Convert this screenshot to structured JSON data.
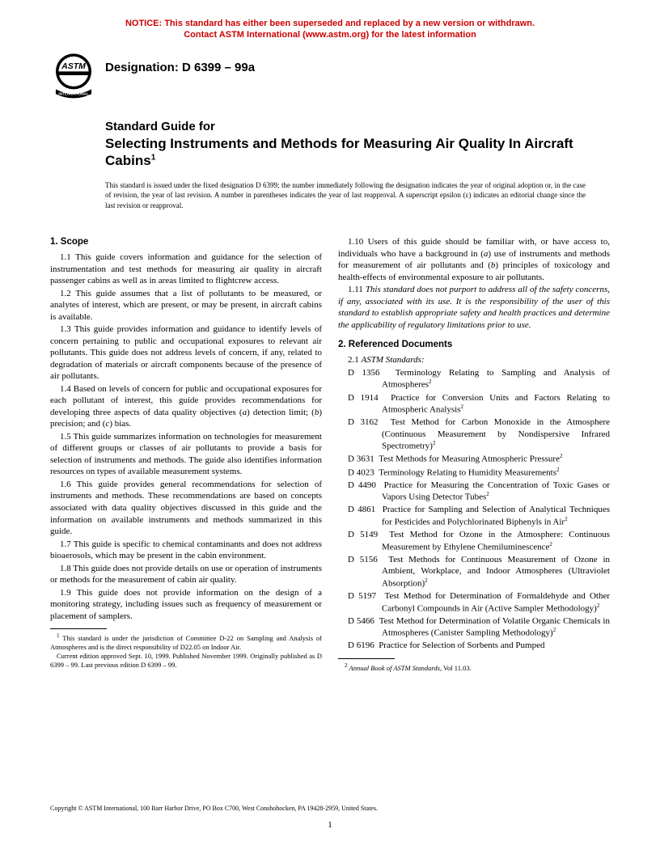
{
  "notice": {
    "line1": "NOTICE: This standard has either been superseded and replaced by a new version or withdrawn.",
    "line2": "Contact ASTM International (www.astm.org) for the latest information",
    "color": "#cc0000"
  },
  "logo": {
    "label": "ASTM INTERNATIONAL"
  },
  "designation": "Designation: D 6399 – 99a",
  "title": {
    "lead": "Standard Guide for",
    "main": "Selecting Instruments and Methods for Measuring Air Quality In Aircraft Cabins",
    "sup": "1"
  },
  "issue_note": "This standard is issued under the fixed designation D 6399; the number immediately following the designation indicates the year of original adoption or, in the case of revision, the year of last revision. A number in parentheses indicates the year of last reapproval. A superscript epsilon (ε) indicates an editorial change since the last revision or reapproval.",
  "scope": {
    "heading": "1. Scope",
    "p1": "1.1 This guide covers information and guidance for the selection of instrumentation and test methods for measuring air quality in aircraft passenger cabins as well as in areas limited to flightcrew access.",
    "p2": "1.2 This guide assumes that a list of pollutants to be measured, or analytes of interest, which are present, or may be present, in aircraft cabins is available.",
    "p3": "1.3 This guide provides information and guidance to identify levels of concern pertaining to public and occupational exposures to relevant air pollutants. This guide does not address levels of concern, if any, related to degradation of materials or aircraft components because of the presence of air pollutants.",
    "p4_a": "1.4 Based on levels of concern for public and occupational exposures for each pollutant of interest, this guide provides recommendations for developing three aspects of data quality objectives (",
    "p4_ai": "a",
    "p4_b": ") detection limit; (",
    "p4_bi": "b",
    "p4_c": ") precision; and (",
    "p4_ci": "c",
    "p4_d": ") bias.",
    "p5": "1.5 This guide summarizes information on technologies for measurement of different groups or classes of air pollutants to provide a basis for selection of instruments and methods. The guide also identifies information resources on types of available measurement systems.",
    "p6": "1.6 This guide provides general recommendations for selection of instruments and methods. These recommendations are based on concepts associated with data quality objectives discussed in this guide and the information on available instruments and methods summarized in this guide.",
    "p7": "1.7 This guide is specific to chemical contaminants and does not address bioaerosols, which may be present in the cabin environment.",
    "p8": "1.8 This guide does not provide details on use or operation of instruments or methods for the measurement of cabin air quality.",
    "p9": "1.9 This guide does not provide information on the design of a monitoring strategy, including issues such as frequency of measurement or placement of samplers.",
    "p10_a": "1.10 Users of this guide should be familiar with, or have access to, individuals who have a background in (",
    "p10_ai": "a",
    "p10_b": ") use of instruments and methods for measurement of air pollutants and (",
    "p10_bi": "b",
    "p10_c": ") principles of toxicology and health-effects of environmental exposure to air pollutants.",
    "p11": "1.11 This standard does not purport to address all of the safety concerns, if any, associated with its use. It is the responsibility of the user of this standard to establish appropriate safety and health practices and determine the applicability of regulatory limitations prior to use."
  },
  "refs": {
    "heading": "2. Referenced Documents",
    "sub": "2.1 ASTM Standards:",
    "items": [
      {
        "code": "D 1356",
        "text": "Terminology Relating to Sampling and Analysis of Atmospheres",
        "sup": "2"
      },
      {
        "code": "D 1914",
        "text": "Practice for Conversion Units and Factors Relating to Atmospheric Analysis",
        "sup": "2"
      },
      {
        "code": "D 3162",
        "text": "Test Method for Carbon Monoxide in the Atmosphere (Continuous Measurement by Nondispersive Infrared Spectrometry)",
        "sup": "2"
      },
      {
        "code": "D 3631",
        "text": "Test Methods for Measuring Atmospheric Pressure",
        "sup": "2"
      },
      {
        "code": "D 4023",
        "text": "Terminology Relating to Humidity Measurements",
        "sup": "2"
      },
      {
        "code": "D 4490",
        "text": "Practice for Measuring the Concentration of Toxic Gases or Vapors Using Detector Tubes",
        "sup": "2"
      },
      {
        "code": "D 4861",
        "text": "Practice for Sampling and Selection of Analytical Techniques for Pesticides and Polychlorinated Biphenyls in Air",
        "sup": "2"
      },
      {
        "code": "D 5149",
        "text": "Test Method for Ozone in the Atmosphere: Continuous Measurement by Ethylene Chemiluminescence",
        "sup": "2"
      },
      {
        "code": "D 5156",
        "text": "Test Methods for Continuous Measurement of Ozone in Ambient, Workplace, and Indoor Atmospheres (Ultraviolet Absorption)",
        "sup": "2"
      },
      {
        "code": "D 5197",
        "text": "Test Method for Determination of Formaldehyde and Other Carbonyl Compounds in Air (Active Sampler Methodology)",
        "sup": "2"
      },
      {
        "code": "D 5466",
        "text": "Test Method for Determination of Volatile Organic Chemicals in Atmospheres (Canister Sampling Methodology)",
        "sup": "2"
      },
      {
        "code": "D 6196",
        "text": "Practice for Selection of Sorbents and Pumped",
        "sup": ""
      }
    ]
  },
  "foot1": {
    "a": "1",
    "text1": " This standard is under the jurisdiction of Committee D-22 on Sampling and Analysis of Atmospheres and is the direct responsibility of D22.05 on Indoor Air.",
    "text2": "Current edition approved Sept. 10, 1999. Published November 1999. Originally published as D 6399 – 99. Last previous edition D 6399 – 99."
  },
  "foot2": {
    "a": "2",
    "text_it": " Annual Book of ASTM Standards",
    "text": ", Vol 11.03."
  },
  "copyright": "Copyright © ASTM International, 100 Barr Harbor Drive, PO Box C700, West Conshohocken, PA 19428-2959, United States.",
  "page": "1"
}
